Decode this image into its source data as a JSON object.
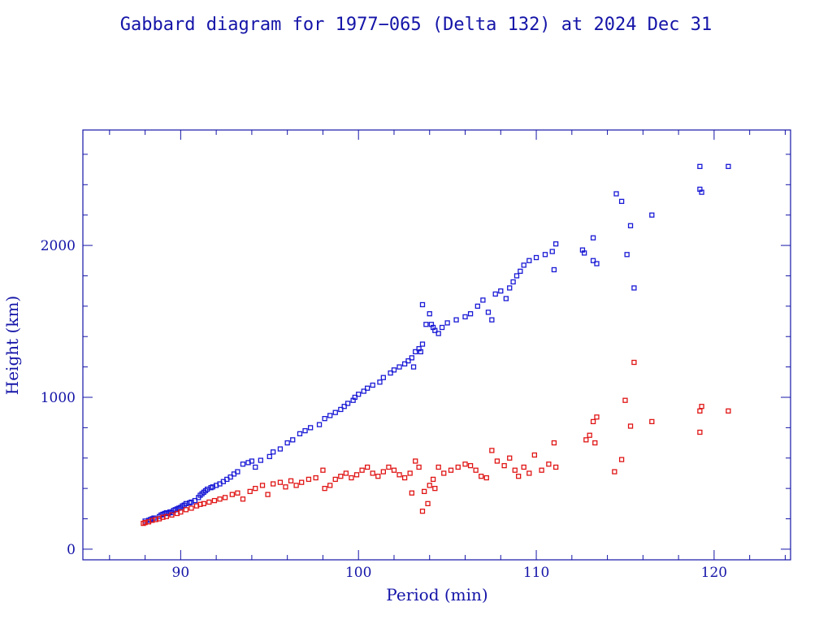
{
  "chart_data": {
    "type": "scatter",
    "title": "Gabbard diagram for 1977−065 (Delta 132) at 2024 Dec 31",
    "xlabel": "Period (min)",
    "ylabel": "Height (km)",
    "xlim": [
      84.5,
      124.3
    ],
    "ylim": [
      -70,
      2760
    ],
    "xticks": [
      90,
      100,
      110,
      120
    ],
    "xtick_labels": [
      "90",
      "100",
      "110",
      "120"
    ],
    "yticks": [
      0,
      1000,
      2000
    ],
    "ytick_labels": [
      "0",
      "1000",
      "2000"
    ],
    "grid": false,
    "legend": "none",
    "colors": {
      "apogee": "#1a1ad6",
      "perigee": "#e01414",
      "frame": "#1414a8",
      "text": "#1414a8"
    },
    "series": [
      {
        "color": "#1a1ad6",
        "points": [
          [
            88.0,
            185
          ],
          [
            88.2,
            190
          ],
          [
            88.3,
            195
          ],
          [
            88.4,
            200
          ],
          [
            88.5,
            205
          ],
          [
            88.8,
            215
          ],
          [
            88.9,
            225
          ],
          [
            89.0,
            230
          ],
          [
            89.1,
            235
          ],
          [
            89.2,
            240
          ],
          [
            89.3,
            235
          ],
          [
            89.4,
            245
          ],
          [
            89.5,
            240
          ],
          [
            89.6,
            255
          ],
          [
            89.7,
            260
          ],
          [
            89.8,
            265
          ],
          [
            89.9,
            270
          ],
          [
            90.0,
            275
          ],
          [
            90.1,
            285
          ],
          [
            90.2,
            290
          ],
          [
            90.3,
            300
          ],
          [
            90.5,
            305
          ],
          [
            90.6,
            310
          ],
          [
            90.8,
            320
          ],
          [
            91.0,
            340
          ],
          [
            91.1,
            355
          ],
          [
            91.2,
            365
          ],
          [
            91.3,
            375
          ],
          [
            91.4,
            385
          ],
          [
            91.5,
            395
          ],
          [
            91.7,
            405
          ],
          [
            91.8,
            410
          ],
          [
            92.0,
            420
          ],
          [
            92.2,
            430
          ],
          [
            92.4,
            445
          ],
          [
            92.6,
            460
          ],
          [
            92.8,
            475
          ],
          [
            93.0,
            495
          ],
          [
            93.2,
            510
          ],
          [
            93.5,
            560
          ],
          [
            93.8,
            570
          ],
          [
            94.0,
            580
          ],
          [
            94.2,
            540
          ],
          [
            94.5,
            585
          ],
          [
            95.0,
            610
          ],
          [
            95.2,
            640
          ],
          [
            95.6,
            660
          ],
          [
            96.0,
            700
          ],
          [
            96.3,
            720
          ],
          [
            96.7,
            760
          ],
          [
            97.0,
            780
          ],
          [
            97.3,
            800
          ],
          [
            97.8,
            820
          ],
          [
            98.1,
            860
          ],
          [
            98.4,
            880
          ],
          [
            98.7,
            900
          ],
          [
            99.0,
            920
          ],
          [
            99.2,
            940
          ],
          [
            99.4,
            960
          ],
          [
            99.7,
            980
          ],
          [
            99.8,
            1000
          ],
          [
            100.0,
            1020
          ],
          [
            100.3,
            1040
          ],
          [
            100.5,
            1060
          ],
          [
            100.8,
            1080
          ],
          [
            101.2,
            1100
          ],
          [
            101.4,
            1130
          ],
          [
            101.8,
            1160
          ],
          [
            102.0,
            1180
          ],
          [
            102.3,
            1200
          ],
          [
            102.6,
            1220
          ],
          [
            102.8,
            1240
          ],
          [
            103.0,
            1260
          ],
          [
            103.1,
            1200
          ],
          [
            103.2,
            1300
          ],
          [
            103.4,
            1320
          ],
          [
            103.5,
            1300
          ],
          [
            103.6,
            1350
          ],
          [
            103.6,
            1610
          ],
          [
            103.8,
            1480
          ],
          [
            104.0,
            1550
          ],
          [
            104.1,
            1480
          ],
          [
            104.2,
            1460
          ],
          [
            104.3,
            1440
          ],
          [
            104.5,
            1420
          ],
          [
            104.7,
            1460
          ],
          [
            105.0,
            1490
          ],
          [
            105.5,
            1510
          ],
          [
            106.0,
            1530
          ],
          [
            106.3,
            1550
          ],
          [
            106.7,
            1600
          ],
          [
            107.0,
            1640
          ],
          [
            107.3,
            1560
          ],
          [
            107.5,
            1510
          ],
          [
            107.7,
            1680
          ],
          [
            108.0,
            1700
          ],
          [
            108.3,
            1650
          ],
          [
            108.5,
            1720
          ],
          [
            108.7,
            1760
          ],
          [
            108.9,
            1800
          ],
          [
            109.1,
            1830
          ],
          [
            109.3,
            1870
          ],
          [
            109.6,
            1900
          ],
          [
            110.0,
            1920
          ],
          [
            110.5,
            1940
          ],
          [
            110.9,
            1960
          ],
          [
            111.1,
            2010
          ],
          [
            111.0,
            1840
          ],
          [
            112.6,
            1970
          ],
          [
            112.7,
            1950
          ],
          [
            113.2,
            1900
          ],
          [
            113.4,
            1880
          ],
          [
            113.2,
            2050
          ],
          [
            114.5,
            2340
          ],
          [
            114.8,
            2290
          ],
          [
            115.3,
            2130
          ],
          [
            115.1,
            1940
          ],
          [
            115.5,
            1720
          ],
          [
            116.5,
            2200
          ],
          [
            119.2,
            2370
          ],
          [
            119.3,
            2350
          ],
          [
            119.2,
            2520
          ],
          [
            120.8,
            2520
          ]
        ]
      },
      {
        "color": "#e01414",
        "points": [
          [
            87.9,
            170
          ],
          [
            88.0,
            175
          ],
          [
            88.2,
            180
          ],
          [
            88.4,
            190
          ],
          [
            88.6,
            195
          ],
          [
            88.8,
            200
          ],
          [
            89.0,
            210
          ],
          [
            89.2,
            215
          ],
          [
            89.5,
            225
          ],
          [
            89.8,
            235
          ],
          [
            90.0,
            245
          ],
          [
            90.3,
            260
          ],
          [
            90.6,
            270
          ],
          [
            90.9,
            285
          ],
          [
            91.1,
            295
          ],
          [
            91.3,
            300
          ],
          [
            91.6,
            310
          ],
          [
            91.9,
            320
          ],
          [
            92.2,
            330
          ],
          [
            92.5,
            340
          ],
          [
            92.9,
            360
          ],
          [
            93.2,
            370
          ],
          [
            93.5,
            330
          ],
          [
            93.9,
            380
          ],
          [
            94.2,
            400
          ],
          [
            94.6,
            420
          ],
          [
            94.9,
            360
          ],
          [
            95.2,
            430
          ],
          [
            95.6,
            440
          ],
          [
            95.9,
            410
          ],
          [
            96.2,
            450
          ],
          [
            96.5,
            420
          ],
          [
            96.8,
            440
          ],
          [
            97.2,
            460
          ],
          [
            97.6,
            470
          ],
          [
            98.0,
            520
          ],
          [
            98.1,
            400
          ],
          [
            98.4,
            420
          ],
          [
            98.7,
            460
          ],
          [
            99.0,
            480
          ],
          [
            99.3,
            500
          ],
          [
            99.6,
            470
          ],
          [
            99.9,
            490
          ],
          [
            100.2,
            520
          ],
          [
            100.5,
            540
          ],
          [
            100.8,
            500
          ],
          [
            101.1,
            480
          ],
          [
            101.4,
            510
          ],
          [
            101.7,
            540
          ],
          [
            102.0,
            520
          ],
          [
            102.3,
            490
          ],
          [
            102.6,
            470
          ],
          [
            102.9,
            500
          ],
          [
            103.2,
            580
          ],
          [
            103.0,
            370
          ],
          [
            103.4,
            540
          ],
          [
            103.6,
            250
          ],
          [
            103.7,
            380
          ],
          [
            103.9,
            300
          ],
          [
            104.0,
            420
          ],
          [
            104.2,
            460
          ],
          [
            104.3,
            400
          ],
          [
            104.5,
            540
          ],
          [
            104.8,
            500
          ],
          [
            105.2,
            520
          ],
          [
            105.6,
            540
          ],
          [
            106.0,
            560
          ],
          [
            106.3,
            550
          ],
          [
            106.6,
            520
          ],
          [
            106.9,
            480
          ],
          [
            107.2,
            470
          ],
          [
            107.5,
            650
          ],
          [
            107.8,
            580
          ],
          [
            108.2,
            550
          ],
          [
            108.5,
            600
          ],
          [
            108.8,
            520
          ],
          [
            109.0,
            480
          ],
          [
            109.3,
            540
          ],
          [
            109.6,
            500
          ],
          [
            109.9,
            620
          ],
          [
            110.3,
            520
          ],
          [
            110.7,
            560
          ],
          [
            111.0,
            700
          ],
          [
            111.1,
            540
          ],
          [
            112.8,
            720
          ],
          [
            113.0,
            750
          ],
          [
            113.2,
            840
          ],
          [
            113.4,
            870
          ],
          [
            113.3,
            700
          ],
          [
            114.4,
            510
          ],
          [
            114.8,
            590
          ],
          [
            115.0,
            980
          ],
          [
            115.3,
            810
          ],
          [
            115.5,
            1230
          ],
          [
            116.5,
            840
          ],
          [
            119.2,
            910
          ],
          [
            119.3,
            940
          ],
          [
            119.2,
            770
          ],
          [
            120.8,
            910
          ]
        ]
      }
    ]
  }
}
